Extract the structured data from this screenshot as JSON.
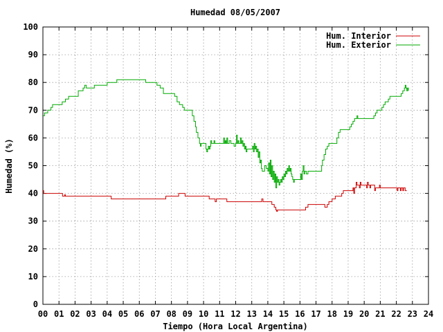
{
  "chart_data": {
    "type": "line",
    "title": "Humedad 08/05/2007",
    "xlabel": "Tiempo (Hora Local Argentina)",
    "ylabel": "Humedad (%)",
    "xlim": [
      0,
      24
    ],
    "ylim": [
      0,
      100
    ],
    "grid": true,
    "legend_position": "top-right",
    "x_ticks": [
      {
        "value": 0,
        "label": "00"
      },
      {
        "value": 1,
        "label": "01"
      },
      {
        "value": 2,
        "label": "02"
      },
      {
        "value": 3,
        "label": "03"
      },
      {
        "value": 4,
        "label": "04"
      },
      {
        "value": 5,
        "label": "05"
      },
      {
        "value": 6,
        "label": "06"
      },
      {
        "value": 7,
        "label": "07"
      },
      {
        "value": 8,
        "label": "08"
      },
      {
        "value": 9,
        "label": "09"
      },
      {
        "value": 10,
        "label": "10"
      },
      {
        "value": 11,
        "label": "11"
      },
      {
        "value": 12,
        "label": "12"
      },
      {
        "value": 13,
        "label": "13"
      },
      {
        "value": 14,
        "label": "14"
      },
      {
        "value": 15,
        "label": "15"
      },
      {
        "value": 16,
        "label": "16"
      },
      {
        "value": 17,
        "label": "17"
      },
      {
        "value": 18,
        "label": "18"
      },
      {
        "value": 19,
        "label": "19"
      },
      {
        "value": 20,
        "label": "20"
      },
      {
        "value": 21,
        "label": "21"
      },
      {
        "value": 22,
        "label": "22"
      },
      {
        "value": 23,
        "label": "23"
      },
      {
        "value": 24,
        "label": "24"
      }
    ],
    "y_ticks": [
      {
        "value": 0,
        "label": "0"
      },
      {
        "value": 10,
        "label": "10"
      },
      {
        "value": 20,
        "label": "20"
      },
      {
        "value": 30,
        "label": "30"
      },
      {
        "value": 40,
        "label": "40"
      },
      {
        "value": 50,
        "label": "50"
      },
      {
        "value": 60,
        "label": "60"
      },
      {
        "value": 70,
        "label": "70"
      },
      {
        "value": 80,
        "label": "80"
      },
      {
        "value": 90,
        "label": "90"
      },
      {
        "value": 100,
        "label": "100"
      }
    ],
    "series": [
      {
        "name": "Hum. Interior",
        "color": "#cc0000",
        "points": [
          [
            0.0,
            41
          ],
          [
            0.05,
            40
          ],
          [
            1.2,
            40
          ],
          [
            1.22,
            39
          ],
          [
            1.35,
            39.5
          ],
          [
            1.4,
            39
          ],
          [
            4.2,
            39
          ],
          [
            4.25,
            38
          ],
          [
            7.6,
            38
          ],
          [
            7.65,
            39
          ],
          [
            8.4,
            39
          ],
          [
            8.45,
            40
          ],
          [
            8.8,
            40
          ],
          [
            8.85,
            39
          ],
          [
            10.3,
            39
          ],
          [
            10.35,
            38
          ],
          [
            10.7,
            38
          ],
          [
            10.72,
            37
          ],
          [
            10.8,
            38
          ],
          [
            11.4,
            38
          ],
          [
            11.45,
            37
          ],
          [
            13.6,
            37
          ],
          [
            13.62,
            38
          ],
          [
            13.7,
            37
          ],
          [
            14.2,
            37
          ],
          [
            14.25,
            36
          ],
          [
            14.4,
            35
          ],
          [
            14.5,
            34
          ],
          [
            14.55,
            33.5
          ],
          [
            14.6,
            34
          ],
          [
            16.3,
            34
          ],
          [
            16.35,
            35
          ],
          [
            16.5,
            36
          ],
          [
            17.5,
            36
          ],
          [
            17.55,
            35
          ],
          [
            17.7,
            36
          ],
          [
            17.8,
            37
          ],
          [
            18.0,
            38
          ],
          [
            18.2,
            39
          ],
          [
            18.6,
            40
          ],
          [
            18.7,
            41
          ],
          [
            19.2,
            41
          ],
          [
            19.3,
            42
          ],
          [
            19.35,
            40
          ],
          [
            19.4,
            42
          ],
          [
            19.5,
            44
          ],
          [
            19.55,
            43
          ],
          [
            19.7,
            42
          ],
          [
            19.75,
            44
          ],
          [
            19.8,
            43
          ],
          [
            20.1,
            43
          ],
          [
            20.15,
            42
          ],
          [
            20.2,
            44
          ],
          [
            20.25,
            43
          ],
          [
            20.35,
            42
          ],
          [
            20.4,
            43
          ],
          [
            20.6,
            43
          ],
          [
            20.65,
            41
          ],
          [
            20.7,
            42
          ],
          [
            20.9,
            42
          ],
          [
            20.95,
            43
          ],
          [
            21.0,
            42
          ],
          [
            22.0,
            42
          ],
          [
            22.05,
            41
          ],
          [
            22.1,
            42
          ],
          [
            22.2,
            42
          ],
          [
            22.25,
            41
          ],
          [
            22.3,
            42
          ],
          [
            22.4,
            41
          ],
          [
            22.45,
            42
          ],
          [
            22.55,
            41
          ],
          [
            22.65,
            41
          ]
        ]
      },
      {
        "name": "Hum. Exterior",
        "color": "#00aa00",
        "points": [
          [
            0.0,
            68
          ],
          [
            0.1,
            69
          ],
          [
            0.3,
            70
          ],
          [
            0.5,
            71
          ],
          [
            0.6,
            72
          ],
          [
            1.0,
            72
          ],
          [
            1.2,
            73
          ],
          [
            1.4,
            74
          ],
          [
            1.6,
            75
          ],
          [
            2.1,
            75
          ],
          [
            2.2,
            77
          ],
          [
            2.5,
            78
          ],
          [
            2.6,
            79
          ],
          [
            2.7,
            78
          ],
          [
            3.1,
            78
          ],
          [
            3.2,
            79
          ],
          [
            3.9,
            79
          ],
          [
            4.0,
            80
          ],
          [
            4.5,
            80
          ],
          [
            4.6,
            81
          ],
          [
            6.3,
            81
          ],
          [
            6.4,
            80
          ],
          [
            7.0,
            80
          ],
          [
            7.1,
            79
          ],
          [
            7.3,
            78
          ],
          [
            7.5,
            76
          ],
          [
            8.1,
            76
          ],
          [
            8.2,
            75
          ],
          [
            8.35,
            73
          ],
          [
            8.5,
            72
          ],
          [
            8.7,
            71
          ],
          [
            8.8,
            70
          ],
          [
            9.2,
            70
          ],
          [
            9.3,
            68
          ],
          [
            9.4,
            66
          ],
          [
            9.5,
            64
          ],
          [
            9.55,
            62
          ],
          [
            9.65,
            60
          ],
          [
            9.75,
            58
          ],
          [
            9.8,
            57
          ],
          [
            9.85,
            58
          ],
          [
            10.1,
            58
          ],
          [
            10.15,
            56
          ],
          [
            10.2,
            55
          ],
          [
            10.25,
            56
          ],
          [
            10.3,
            57
          ],
          [
            10.35,
            56
          ],
          [
            10.4,
            57
          ],
          [
            10.45,
            59
          ],
          [
            10.5,
            58
          ],
          [
            10.6,
            58
          ],
          [
            10.65,
            59
          ],
          [
            10.7,
            58
          ],
          [
            11.2,
            58
          ],
          [
            11.25,
            60
          ],
          [
            11.3,
            58
          ],
          [
            11.35,
            59
          ],
          [
            11.4,
            58
          ],
          [
            11.45,
            60
          ],
          [
            11.5,
            58
          ],
          [
            11.6,
            59
          ],
          [
            11.7,
            58
          ],
          [
            11.8,
            58
          ],
          [
            11.9,
            57
          ],
          [
            12.0,
            58
          ],
          [
            12.05,
            61
          ],
          [
            12.1,
            58
          ],
          [
            12.15,
            59
          ],
          [
            12.2,
            58
          ],
          [
            12.3,
            60
          ],
          [
            12.35,
            58
          ],
          [
            12.4,
            59
          ],
          [
            12.45,
            57
          ],
          [
            12.5,
            58
          ],
          [
            12.55,
            56
          ],
          [
            12.6,
            57
          ],
          [
            12.65,
            55
          ],
          [
            12.7,
            56
          ],
          [
            13.0,
            56
          ],
          [
            13.05,
            57
          ],
          [
            13.1,
            55
          ],
          [
            13.15,
            58
          ],
          [
            13.2,
            56
          ],
          [
            13.25,
            57
          ],
          [
            13.3,
            55
          ],
          [
            13.35,
            56
          ],
          [
            13.4,
            53
          ],
          [
            13.45,
            55
          ],
          [
            13.5,
            51
          ],
          [
            13.55,
            52
          ],
          [
            13.6,
            49
          ],
          [
            13.65,
            48
          ],
          [
            13.7,
            48
          ],
          [
            13.8,
            50
          ],
          [
            13.9,
            49
          ],
          [
            14.0,
            48
          ],
          [
            14.05,
            51
          ],
          [
            14.1,
            47
          ],
          [
            14.15,
            52
          ],
          [
            14.2,
            46
          ],
          [
            14.25,
            50
          ],
          [
            14.3,
            45
          ],
          [
            14.35,
            48
          ],
          [
            14.4,
            44
          ],
          [
            14.45,
            47
          ],
          [
            14.5,
            42
          ],
          [
            14.55,
            46
          ],
          [
            14.6,
            44
          ],
          [
            14.65,
            45
          ],
          [
            14.7,
            43
          ],
          [
            14.75,
            44
          ],
          [
            14.8,
            45
          ],
          [
            14.85,
            44
          ],
          [
            14.9,
            46
          ],
          [
            14.95,
            45
          ],
          [
            15.0,
            47
          ],
          [
            15.05,
            46
          ],
          [
            15.1,
            48
          ],
          [
            15.15,
            47
          ],
          [
            15.2,
            49
          ],
          [
            15.25,
            48
          ],
          [
            15.3,
            50
          ],
          [
            15.35,
            48
          ],
          [
            15.4,
            49
          ],
          [
            15.45,
            47
          ],
          [
            15.5,
            46
          ],
          [
            15.55,
            45
          ],
          [
            15.6,
            44
          ],
          [
            15.65,
            45
          ],
          [
            16.0,
            45
          ],
          [
            16.05,
            47
          ],
          [
            16.1,
            45
          ],
          [
            16.15,
            48
          ],
          [
            16.2,
            50
          ],
          [
            16.25,
            47
          ],
          [
            16.3,
            48
          ],
          [
            16.4,
            47
          ],
          [
            16.5,
            48
          ],
          [
            17.3,
            48
          ],
          [
            17.35,
            50
          ],
          [
            17.4,
            52
          ],
          [
            17.5,
            54
          ],
          [
            17.6,
            56
          ],
          [
            17.7,
            57
          ],
          [
            17.8,
            58
          ],
          [
            18.2,
            58
          ],
          [
            18.3,
            60
          ],
          [
            18.4,
            62
          ],
          [
            18.5,
            63
          ],
          [
            19.0,
            63
          ],
          [
            19.1,
            64
          ],
          [
            19.2,
            65
          ],
          [
            19.3,
            66
          ],
          [
            19.4,
            67
          ],
          [
            19.5,
            67
          ],
          [
            19.55,
            68
          ],
          [
            19.6,
            67
          ],
          [
            20.5,
            67
          ],
          [
            20.6,
            68
          ],
          [
            20.7,
            69
          ],
          [
            20.8,
            70
          ],
          [
            21.0,
            70
          ],
          [
            21.1,
            71
          ],
          [
            21.2,
            72
          ],
          [
            21.3,
            73
          ],
          [
            21.5,
            74
          ],
          [
            21.6,
            75
          ],
          [
            22.2,
            75
          ],
          [
            22.3,
            76
          ],
          [
            22.4,
            77
          ],
          [
            22.5,
            78
          ],
          [
            22.55,
            79
          ],
          [
            22.6,
            78
          ],
          [
            22.65,
            77
          ],
          [
            22.7,
            78
          ],
          [
            22.75,
            77
          ]
        ]
      }
    ]
  }
}
